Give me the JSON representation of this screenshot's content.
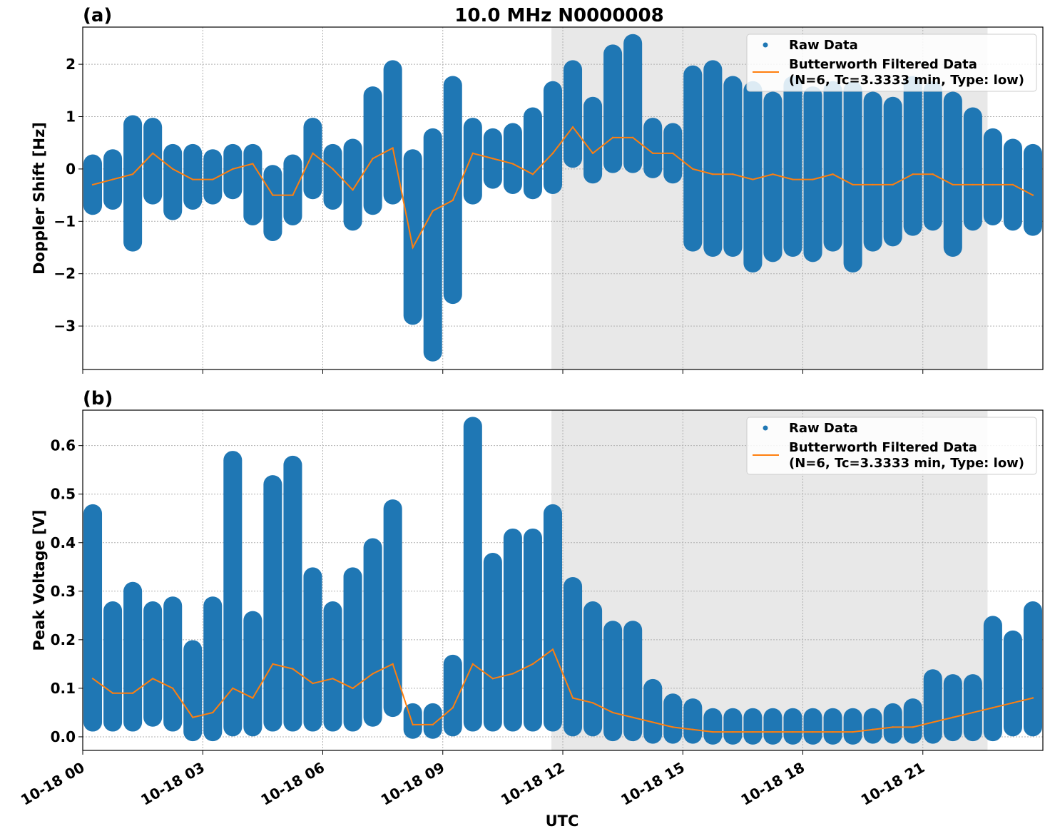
{
  "figure": {
    "title": "10.0 MHz N0000008",
    "xlabel": "UTC",
    "shaded_interval_utc": [
      "10-18 11:43",
      "10-18 22:37"
    ],
    "shade_color": "#e8e8e8",
    "x_ticks": [
      "10-18 00",
      "10-18 03",
      "10-18 06",
      "10-18 09",
      "10-18 12",
      "10-18 15",
      "10-18 18",
      "10-18 21"
    ],
    "xlim_utc": [
      "10-18 00:00",
      "10-19 00:00"
    ],
    "colors": {
      "raw": "#1f77b4",
      "filtered": "#ff7f0e"
    },
    "grid": true
  },
  "chart_data": [
    {
      "panel": "(a)",
      "type": "scatter+line",
      "ylabel": "Doppler Shift [Hz]",
      "ylim": [
        -3.83,
        2.71
      ],
      "y_ticks": [
        "2",
        "1",
        "0",
        "−1",
        "−2",
        "−3"
      ],
      "y_tick_values": [
        2,
        1,
        0,
        -1,
        -2,
        -3
      ],
      "legend": {
        "placement": "upper right",
        "entries": [
          "Raw Data",
          "Butterworth Filtered Data",
          "(N=6, Tc=3.3333 min, Type: low)"
        ]
      },
      "bin_start_hour_utc": [
        0,
        0.5,
        1,
        1.5,
        2,
        2.5,
        3,
        3.5,
        4,
        4.5,
        5,
        5.5,
        6,
        6.5,
        7,
        7.5,
        8,
        8.5,
        9,
        9.5,
        10,
        10.5,
        11,
        11.5,
        12,
        12.5,
        13,
        13.5,
        14,
        14.5,
        15,
        15.5,
        16,
        16.5,
        17,
        17.5,
        18,
        18.5,
        19,
        19.5,
        20,
        20.5,
        21,
        21.5,
        22,
        22.5,
        23,
        23.5
      ],
      "filtered": [
        -0.3,
        -0.2,
        -0.1,
        0.3,
        0.0,
        -0.2,
        -0.2,
        0.0,
        0.1,
        -0.5,
        -0.5,
        0.3,
        0.0,
        -0.4,
        0.2,
        0.4,
        -1.5,
        -0.8,
        -0.6,
        0.3,
        0.2,
        0.1,
        -0.1,
        0.3,
        0.8,
        0.3,
        0.6,
        0.6,
        0.3,
        0.3,
        0.0,
        -0.1,
        -0.1,
        -0.2,
        -0.1,
        -0.2,
        -0.2,
        -0.1,
        -0.3,
        -0.3,
        -0.3,
        -0.1,
        -0.1,
        -0.3,
        -0.3,
        -0.3,
        -0.3,
        -0.5
      ],
      "raw_min": [
        -0.7,
        -0.6,
        -1.4,
        -0.5,
        -0.8,
        -0.6,
        -0.5,
        -0.4,
        -0.9,
        -1.2,
        -0.9,
        -0.4,
        -0.6,
        -1.0,
        -0.7,
        -0.5,
        -2.8,
        -3.5,
        -2.4,
        -0.5,
        -0.2,
        -0.3,
        -0.4,
        -0.3,
        0.2,
        -0.1,
        0.1,
        0.1,
        0.0,
        -0.1,
        -1.4,
        -1.5,
        -1.5,
        -1.8,
        -1.6,
        -1.5,
        -1.6,
        -1.4,
        -1.8,
        -1.4,
        -1.3,
        -1.1,
        -1.0,
        -1.5,
        -1.0,
        -0.9,
        -1.0,
        -1.1
      ],
      "raw_max": [
        0.1,
        0.2,
        0.85,
        0.8,
        0.3,
        0.3,
        0.2,
        0.3,
        0.3,
        -0.1,
        0.1,
        0.8,
        0.3,
        0.4,
        1.4,
        1.9,
        0.2,
        0.6,
        1.6,
        0.8,
        0.6,
        0.7,
        1.0,
        1.5,
        1.9,
        1.2,
        2.2,
        2.4,
        0.8,
        0.7,
        1.8,
        1.9,
        1.6,
        1.5,
        1.3,
        1.6,
        1.4,
        1.5,
        1.5,
        1.3,
        1.2,
        1.6,
        1.5,
        1.3,
        1.0,
        0.6,
        0.4,
        0.3
      ]
    },
    {
      "panel": "(b)",
      "type": "scatter+line",
      "ylabel": "Peak Voltage [V]",
      "ylim": [
        -0.028,
        0.673
      ],
      "y_ticks": [
        "0.6",
        "0.5",
        "0.4",
        "0.3",
        "0.2",
        "0.1",
        "0.0"
      ],
      "y_tick_values": [
        0.6,
        0.5,
        0.4,
        0.3,
        0.2,
        0.1,
        0.0
      ],
      "legend": {
        "placement": "upper right",
        "entries": [
          "Raw Data",
          "Butterworth Filtered Data",
          "(N=6, Tc=3.3333 min, Type: low)"
        ]
      },
      "bin_start_hour_utc": [
        0,
        0.5,
        1,
        1.5,
        2,
        2.5,
        3,
        3.5,
        4,
        4.5,
        5,
        5.5,
        6,
        6.5,
        7,
        7.5,
        8,
        8.5,
        9,
        9.5,
        10,
        10.5,
        11,
        11.5,
        12,
        12.5,
        13,
        13.5,
        14,
        14.5,
        15,
        15.5,
        16,
        16.5,
        17,
        17.5,
        18,
        18.5,
        19,
        19.5,
        20,
        20.5,
        21,
        21.5,
        22,
        22.5,
        23,
        23.5
      ],
      "filtered": [
        0.12,
        0.09,
        0.09,
        0.12,
        0.1,
        0.04,
        0.05,
        0.1,
        0.08,
        0.15,
        0.14,
        0.11,
        0.12,
        0.1,
        0.13,
        0.15,
        0.025,
        0.025,
        0.06,
        0.15,
        0.12,
        0.13,
        0.15,
        0.18,
        0.08,
        0.07,
        0.05,
        0.04,
        0.03,
        0.02,
        0.015,
        0.01,
        0.01,
        0.01,
        0.01,
        0.01,
        0.01,
        0.01,
        0.01,
        0.015,
        0.02,
        0.02,
        0.03,
        0.04,
        0.05,
        0.06,
        0.07,
        0.08
      ],
      "raw_min": [
        0.03,
        0.03,
        0.03,
        0.04,
        0.03,
        0.01,
        0.01,
        0.02,
        0.02,
        0.03,
        0.03,
        0.03,
        0.03,
        0.03,
        0.04,
        0.06,
        0.015,
        0.015,
        0.02,
        0.03,
        0.03,
        0.03,
        0.03,
        0.03,
        0.02,
        0.02,
        0.01,
        0.01,
        0.005,
        0.005,
        0.005,
        0.003,
        0.003,
        0.003,
        0.003,
        0.003,
        0.003,
        0.003,
        0.003,
        0.005,
        0.005,
        0.005,
        0.005,
        0.01,
        0.01,
        0.01,
        0.02,
        0.02
      ],
      "raw_max": [
        0.46,
        0.26,
        0.3,
        0.26,
        0.27,
        0.18,
        0.27,
        0.57,
        0.24,
        0.52,
        0.56,
        0.33,
        0.26,
        0.33,
        0.39,
        0.47,
        0.05,
        0.05,
        0.15,
        0.64,
        0.36,
        0.41,
        0.41,
        0.46,
        0.31,
        0.26,
        0.22,
        0.22,
        0.1,
        0.07,
        0.06,
        0.04,
        0.04,
        0.04,
        0.04,
        0.04,
        0.04,
        0.04,
        0.04,
        0.04,
        0.05,
        0.06,
        0.12,
        0.11,
        0.11,
        0.23,
        0.2,
        0.26
      ]
    }
  ]
}
